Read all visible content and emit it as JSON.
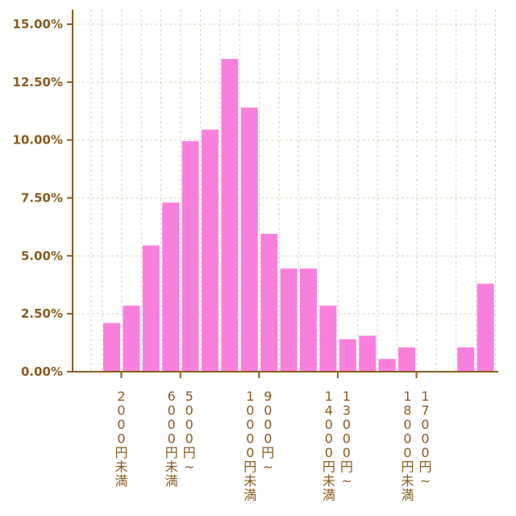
{
  "chart_data": {
    "type": "bar",
    "title": "",
    "xlabel": "",
    "ylabel": "",
    "ylim": [
      0,
      15
    ],
    "y_tick_values": [
      0,
      2.5,
      5,
      7.5,
      10,
      12.5,
      15
    ],
    "y_tick_labels": [
      "0.00%",
      "2.50%",
      "5.00%",
      "7.50%",
      "10.00%",
      "12.50%",
      "15.00%"
    ],
    "grid": true,
    "legend": "none",
    "x_tick_labels": [
      {
        "after_bar": 0,
        "text": "2000円未満"
      },
      {
        "after_bar": 3,
        "text": "6000円未満"
      },
      {
        "after_bar": 3,
        "text": "5000円~"
      },
      {
        "after_bar": 7,
        "text": "10000円未満"
      },
      {
        "after_bar": 7,
        "text": "9000円~"
      },
      {
        "after_bar": 11,
        "text": "14000円未満"
      },
      {
        "after_bar": 11,
        "text": "13000円~"
      },
      {
        "after_bar": 15,
        "text": "18000円未満"
      },
      {
        "after_bar": 15,
        "text": "17000円~"
      }
    ],
    "values": [
      2.1,
      2.85,
      5.45,
      7.3,
      9.95,
      10.45,
      13.5,
      11.4,
      5.95,
      4.45,
      4.45,
      2.85,
      1.4,
      1.55,
      0.55,
      1.05,
      0,
      0,
      1.05,
      3.8
    ],
    "colors": {
      "bar": "#f97fdc",
      "axis": "#8a5a1e",
      "grid": "#d8d3b8",
      "tick_text": "#8a5a1e"
    }
  }
}
